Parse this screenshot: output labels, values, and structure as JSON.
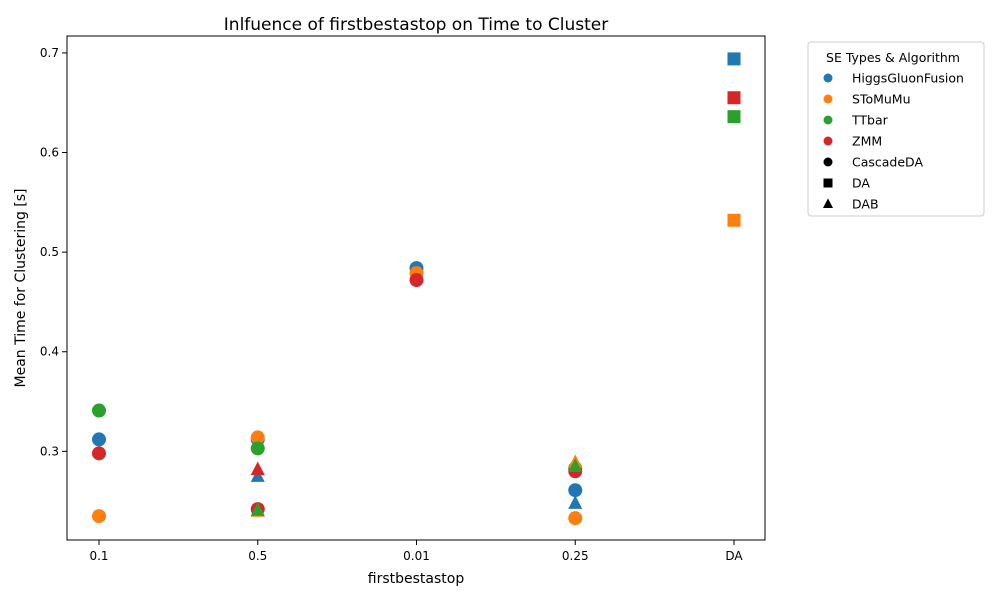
{
  "chart_data": {
    "type": "scatter",
    "title": "Inlfuence of firstbestastop on Time to Cluster",
    "xlabel": "firstbestastop",
    "ylabel": "Mean Time for Clustering [s]",
    "categories": [
      "0.1",
      "0.5",
      "0.01",
      "0.25",
      "DA"
    ],
    "yticks": [
      "0.3",
      "0.4",
      "0.5",
      "0.6",
      "0.7"
    ],
    "ylim": [
      0.211,
      0.717
    ],
    "grid": false,
    "legend": {
      "title": "SE Types & Algorithm",
      "placement": "outside-right",
      "items": [
        {
          "label": "HiggsGluonFusion",
          "marker": "circle",
          "color": "#1f77b4"
        },
        {
          "label": "SToMuMu",
          "marker": "circle",
          "color": "#ff7f0e"
        },
        {
          "label": "TTbar",
          "marker": "circle",
          "color": "#2ca02c"
        },
        {
          "label": "ZMM",
          "marker": "circle",
          "color": "#d62728"
        },
        {
          "label": "CascadeDA",
          "marker": "circle",
          "color": "#000000"
        },
        {
          "label": "DA",
          "marker": "square",
          "color": "#000000"
        },
        {
          "label": "DAB",
          "marker": "triangle",
          "color": "#000000"
        }
      ]
    },
    "series": [
      {
        "sample": "HiggsGluonFusion",
        "algorithm": "CascadeDA",
        "color": "#1f77b4",
        "marker": "circle",
        "points": [
          {
            "x": "0.1",
            "y": 0.312
          },
          {
            "x": "0.5",
            "y": 0.312
          },
          {
            "x": "0.01",
            "y": 0.484
          },
          {
            "x": "0.25",
            "y": 0.261
          }
        ]
      },
      {
        "sample": "SToMuMu",
        "algorithm": "CascadeDA",
        "color": "#ff7f0e",
        "marker": "circle",
        "points": [
          {
            "x": "0.1",
            "y": 0.235
          },
          {
            "x": "0.5",
            "y": 0.314
          },
          {
            "x": "0.01",
            "y": 0.479
          },
          {
            "x": "0.25",
            "y": 0.233
          }
        ]
      },
      {
        "sample": "TTbar",
        "algorithm": "CascadeDA",
        "color": "#2ca02c",
        "marker": "circle",
        "points": [
          {
            "x": "0.1",
            "y": 0.341
          },
          {
            "x": "0.5",
            "y": 0.303
          },
          {
            "x": "0.25",
            "y": 0.283
          }
        ]
      },
      {
        "sample": "ZMM",
        "algorithm": "CascadeDA",
        "color": "#d62728",
        "marker": "circle",
        "points": [
          {
            "x": "0.1",
            "y": 0.298
          },
          {
            "x": "0.5",
            "y": 0.242
          },
          {
            "x": "0.01",
            "y": 0.472
          },
          {
            "x": "0.25",
            "y": 0.28
          }
        ]
      },
      {
        "sample": "HiggsGluonFusion",
        "algorithm": "DAB",
        "color": "#1f77b4",
        "marker": "triangle",
        "points": [
          {
            "x": "0.5",
            "y": 0.275
          },
          {
            "x": "0.25",
            "y": 0.248
          }
        ]
      },
      {
        "sample": "SToMuMu",
        "algorithm": "DAB",
        "color": "#ff7f0e",
        "marker": "triangle",
        "points": [
          {
            "x": "0.5",
            "y": 0.24
          },
          {
            "x": "0.25",
            "y": 0.289
          }
        ]
      },
      {
        "sample": "TTbar",
        "algorithm": "DAB",
        "color": "#2ca02c",
        "marker": "triangle",
        "points": [
          {
            "x": "0.5",
            "y": 0.241
          },
          {
            "x": "0.25",
            "y": 0.285
          }
        ]
      },
      {
        "sample": "ZMM",
        "algorithm": "DAB",
        "color": "#d62728",
        "marker": "triangle",
        "points": [
          {
            "x": "0.5",
            "y": 0.282
          }
        ]
      },
      {
        "sample": "HiggsGluonFusion",
        "algorithm": "DA",
        "color": "#1f77b4",
        "marker": "square",
        "points": [
          {
            "x": "DA",
            "y": 0.694
          }
        ]
      },
      {
        "sample": "SToMuMu",
        "algorithm": "DA",
        "color": "#ff7f0e",
        "marker": "square",
        "points": [
          {
            "x": "DA",
            "y": 0.532
          }
        ]
      },
      {
        "sample": "TTbar",
        "algorithm": "DA",
        "color": "#2ca02c",
        "marker": "square",
        "points": [
          {
            "x": "DA",
            "y": 0.636
          }
        ]
      },
      {
        "sample": "ZMM",
        "algorithm": "DA",
        "color": "#d62728",
        "marker": "square",
        "points": [
          {
            "x": "DA",
            "y": 0.655
          }
        ]
      }
    ]
  }
}
